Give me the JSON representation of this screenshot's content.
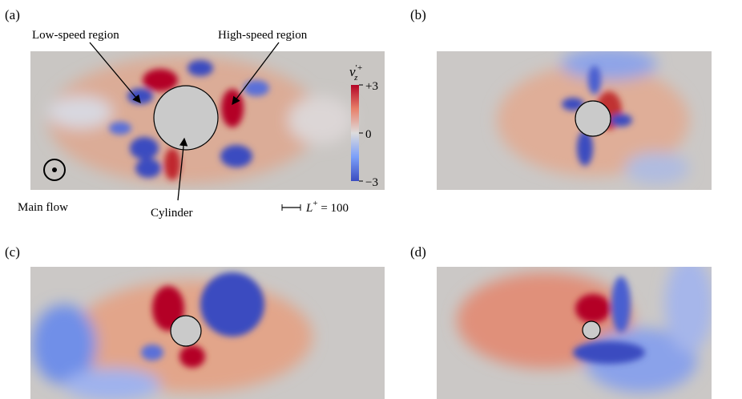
{
  "panels": [
    {
      "label": "(a)"
    },
    {
      "label": "(b)"
    },
    {
      "label": "(c)"
    },
    {
      "label": "(d)"
    }
  ],
  "annotations": {
    "low_speed": "Low-speed region",
    "high_speed": "High-speed region",
    "main_flow": "Main flow",
    "cylinder": "Cylinder"
  },
  "colorbar": {
    "symbol": "v",
    "subscript": "z",
    "superscript": "′+",
    "ticks": [
      "+3",
      "0",
      "−3"
    ]
  },
  "scale_bar": {
    "symbol": "L",
    "superscript": "+",
    "rest": " = 100"
  }
}
